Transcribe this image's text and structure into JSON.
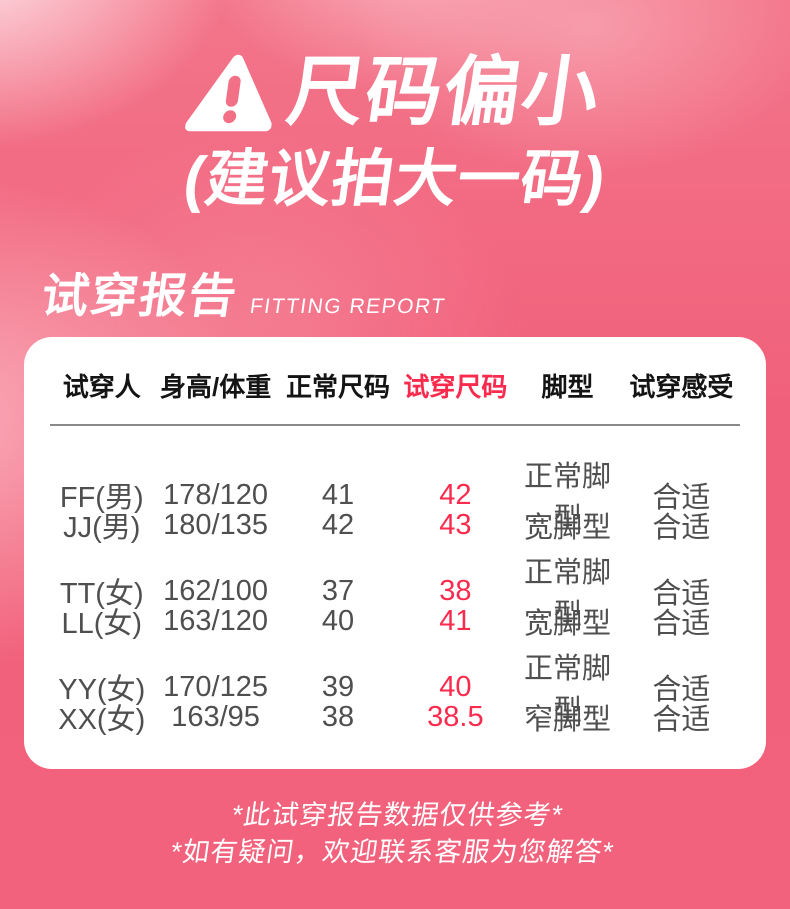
{
  "colors": {
    "background_pink": "#f2627c",
    "accent_red": "#fb2b4e",
    "header_text": "#141414",
    "body_text": "#4f4f4f",
    "card_white": "#ffffff"
  },
  "hero": {
    "icon": "warning-triangle-icon",
    "title": "尺码偏小",
    "subtitle": "(建议拍大一码)"
  },
  "section": {
    "title_cn": "试穿报告",
    "title_en": "FITTING REPORT"
  },
  "table": {
    "headers": [
      "试穿人",
      "身高/体重",
      "正常尺码",
      "试穿尺码",
      "脚型",
      "试穿感受"
    ],
    "highlight_column": 3,
    "rows": [
      [
        "FF(男)",
        "178/120",
        "41",
        "42",
        "正常脚型",
        "合适"
      ],
      [
        "JJ(男)",
        "180/135",
        "42",
        "43",
        "宽脚型",
        "合适"
      ],
      [
        "TT(女)",
        "162/100",
        "37",
        "38",
        "正常脚型",
        "合适"
      ],
      [
        "LL(女)",
        "163/120",
        "40",
        "41",
        "宽脚型",
        "合适"
      ],
      [
        "YY(女)",
        "170/125",
        "39",
        "40",
        "正常脚型",
        "合适"
      ],
      [
        "XX(女)",
        "163/95",
        "38",
        "38.5",
        "窄脚型",
        "合适"
      ]
    ]
  },
  "footer": {
    "note1": "*此试穿报告数据仅供参考*",
    "note2": "*如有疑问，欢迎联系客服为您解答*"
  }
}
